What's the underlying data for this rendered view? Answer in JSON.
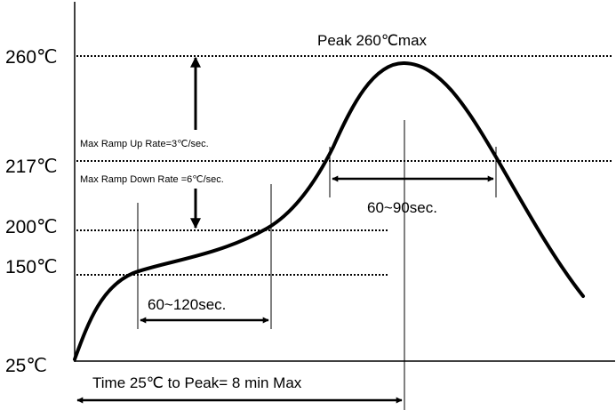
{
  "y_axis": {
    "temps": [
      {
        "label": "260℃"
      },
      {
        "label": "217℃"
      },
      {
        "label": "200℃"
      },
      {
        "label": "150℃"
      },
      {
        "label": "25℃"
      }
    ]
  },
  "annotations": {
    "peak": "Peak 260℃max",
    "ramp_up": "Max Ramp Up Rate=3℃/sec.",
    "ramp_down": "Max Ramp Down Rate =6℃/sec.",
    "above_217": "60~90sec.",
    "preheat": "60~120sec.",
    "time_to_peak": "Time 25℃  to Peak= 8 min Max"
  },
  "colors": {
    "line": "#000000",
    "background": "#ffffff"
  }
}
